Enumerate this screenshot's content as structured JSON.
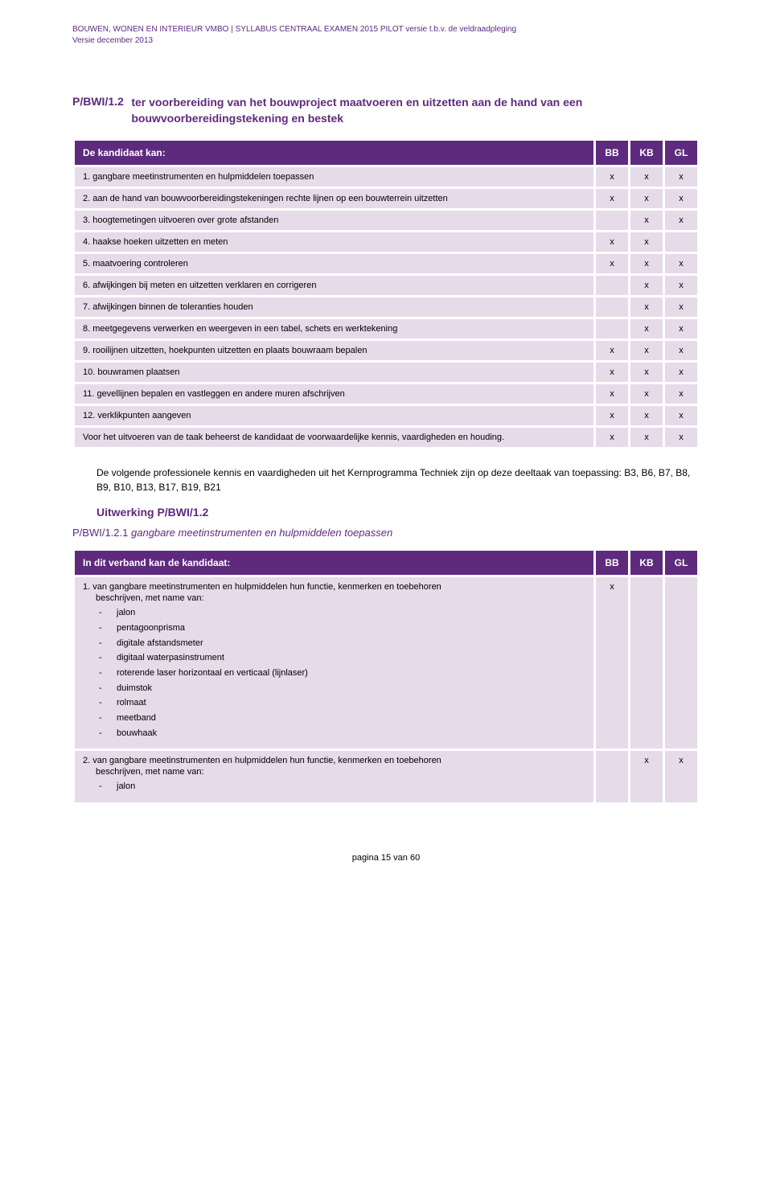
{
  "header": {
    "line1": "BOUWEN, WONEN EN INTERIEUR VMBO | SYLLABUS CENTRAAL EXAMEN 2015 PILOT versie t.b.v. de veldraadpleging",
    "line2": "Versie december 2013"
  },
  "section": {
    "code": "P/BWI/1.2",
    "title": "ter voorbereiding van het bouwproject maatvoeren en uitzetten aan de hand van een bouwvoorbereidingstekening en bestek"
  },
  "table1": {
    "header_main": "De kandidaat kan:",
    "cols": [
      "BB",
      "KB",
      "GL"
    ],
    "rows": [
      {
        "label": "1.  gangbare meetinstrumenten en hulpmiddelen toepassen",
        "vals": [
          "x",
          "x",
          "x"
        ]
      },
      {
        "label": "2.  aan de hand van bouwvoorbereidingstekeningen rechte lijnen op een bouwterrein uitzetten",
        "vals": [
          "x",
          "x",
          "x"
        ]
      },
      {
        "label": "3.  hoogtemetingen uitvoeren over grote afstanden",
        "vals": [
          "",
          "x",
          "x"
        ]
      },
      {
        "label": "4.  haakse hoeken uitzetten en meten",
        "vals": [
          "x",
          "x",
          ""
        ]
      },
      {
        "label": "5.  maatvoering controleren",
        "vals": [
          "x",
          "x",
          "x"
        ]
      },
      {
        "label": "6.  afwijkingen bij meten en uitzetten verklaren en corrigeren",
        "vals": [
          "",
          "x",
          "x"
        ]
      },
      {
        "label": "7.  afwijkingen binnen de toleranties houden",
        "vals": [
          "",
          "x",
          "x"
        ]
      },
      {
        "label": "8.  meetgegevens verwerken en weergeven in een tabel, schets en werktekening",
        "vals": [
          "",
          "x",
          "x"
        ]
      },
      {
        "label": "9.  rooilijnen uitzetten, hoekpunten uitzetten en plaats bouwraam bepalen",
        "vals": [
          "x",
          "x",
          "x"
        ]
      },
      {
        "label": "10. bouwramen plaatsen",
        "vals": [
          "x",
          "x",
          "x"
        ]
      },
      {
        "label": "11. gevellijnen bepalen en vastleggen en andere muren afschrijven",
        "vals": [
          "x",
          "x",
          "x"
        ]
      },
      {
        "label": "12. verklikpunten aangeven",
        "vals": [
          "x",
          "x",
          "x"
        ]
      },
      {
        "label": "Voor het uitvoeren van de taak beheerst de kandidaat de voorwaardelijke kennis, vaardigheden en houding.",
        "vals": [
          "x",
          "x",
          "x"
        ]
      }
    ]
  },
  "body_text": "De volgende professionele kennis en vaardigheden uit het Kernprogramma Techniek zijn op deze deeltaak van toepassing: B3, B6, B7, B8, B9, B10, B13, B17, B19, B21",
  "subheading": "Uitwerking P/BWI/1.2",
  "subsection": {
    "code": "P/BWI/1.2.1",
    "title": "gangbare meetinstrumenten en hulpmiddelen toepassen"
  },
  "table2": {
    "header_main": "In dit verband kan de kandidaat:",
    "cols": [
      "BB",
      "KB",
      "GL"
    ],
    "row1": {
      "lead": "1.  van gangbare meetinstrumenten en hulpmiddelen hun functie, kenmerken en toebehoren",
      "lead2": "beschrijven, met name van:",
      "items": [
        "jalon",
        "pentagoonprisma",
        "digitale afstandsmeter",
        "digitaal waterpasinstrument",
        "roterende laser horizontaal en verticaal (lijnlaser)",
        "duimstok",
        "rolmaat",
        "meetband",
        "bouwhaak"
      ],
      "vals": [
        "x",
        "",
        ""
      ]
    },
    "row2": {
      "lead": "2.  van gangbare meetinstrumenten en hulpmiddelen hun functie, kenmerken en toebehoren",
      "lead2": "beschrijven, met name van:",
      "items": [
        "jalon"
      ],
      "vals": [
        "",
        "x",
        "x"
      ]
    }
  },
  "footer": "pagina 15 van 60"
}
